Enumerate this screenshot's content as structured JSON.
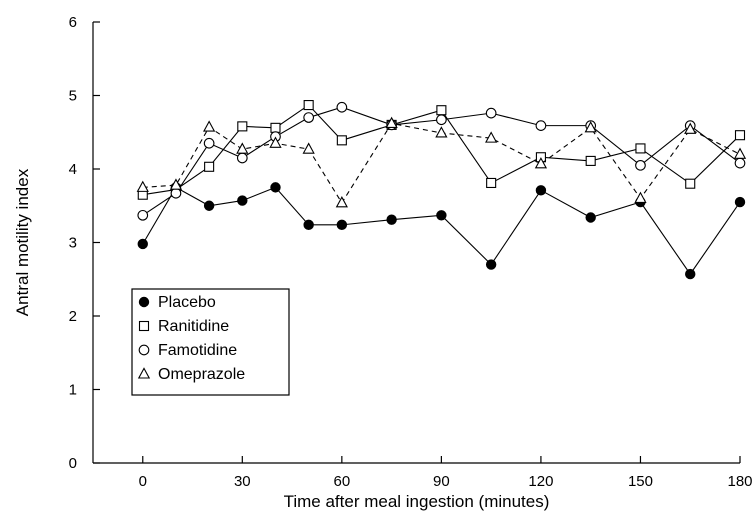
{
  "chart_data": {
    "type": "line",
    "title": "",
    "xlabel": "Time after meal ingestion (minutes)",
    "ylabel": "Antral motility index",
    "xlim": [
      -15,
      180
    ],
    "ylim": [
      0,
      6
    ],
    "xticks": [
      0,
      30,
      60,
      90,
      120,
      150,
      180
    ],
    "yticks": [
      0,
      1,
      2,
      3,
      4,
      5,
      6
    ],
    "grid": false,
    "legend_position": "lower-left",
    "series": [
      {
        "name": "Placebo",
        "marker": "filled-circle",
        "line_style": "solid",
        "x": [
          0,
          10,
          20,
          30,
          40,
          50,
          60,
          75,
          90,
          105,
          120,
          135,
          150,
          165,
          180
        ],
        "y": [
          2.98,
          3.75,
          3.5,
          3.57,
          3.75,
          3.24,
          3.24,
          3.31,
          3.37,
          2.7,
          3.71,
          3.34,
          3.55,
          2.57,
          3.55
        ]
      },
      {
        "name": "Ranitidine",
        "marker": "open-square",
        "line_style": "solid",
        "x": [
          0,
          10,
          20,
          30,
          40,
          50,
          60,
          75,
          90,
          105,
          120,
          135,
          150,
          165,
          180
        ],
        "y": [
          3.65,
          3.72,
          4.03,
          4.58,
          4.56,
          4.87,
          4.39,
          4.6,
          4.8,
          3.81,
          4.16,
          4.11,
          4.28,
          3.8,
          4.46
        ]
      },
      {
        "name": "Famotidine",
        "marker": "open-circle",
        "line_style": "solid",
        "x": [
          0,
          10,
          20,
          30,
          40,
          50,
          60,
          75,
          90,
          105,
          120,
          135,
          150,
          165,
          180
        ],
        "y": [
          3.37,
          3.67,
          4.35,
          4.15,
          4.44,
          4.7,
          4.84,
          4.6,
          4.67,
          4.76,
          4.59,
          4.59,
          4.05,
          4.59,
          4.08
        ]
      },
      {
        "name": "Omeprazole",
        "marker": "open-triangle",
        "line_style": "dashed",
        "x": [
          0,
          10,
          20,
          30,
          40,
          50,
          60,
          75,
          90,
          105,
          120,
          135,
          150,
          165,
          180
        ],
        "y": [
          3.75,
          3.78,
          4.57,
          4.27,
          4.35,
          4.27,
          3.54,
          4.62,
          4.49,
          4.42,
          4.07,
          4.56,
          3.6,
          4.54,
          4.2
        ]
      }
    ]
  }
}
